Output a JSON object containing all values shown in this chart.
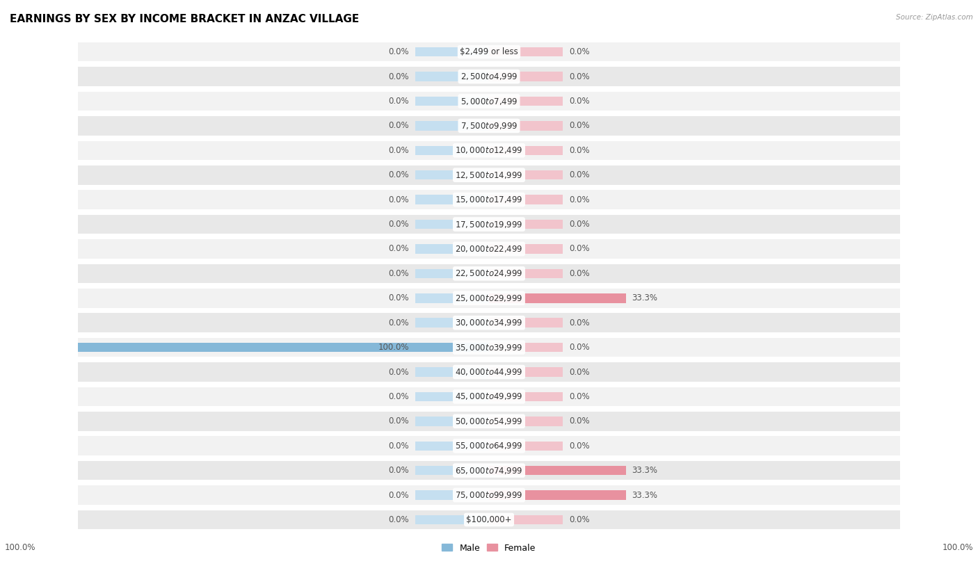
{
  "title": "EARNINGS BY SEX BY INCOME BRACKET IN ANZAC VILLAGE",
  "source": "Source: ZipAtlas.com",
  "categories": [
    "$2,499 or less",
    "$2,500 to $4,999",
    "$5,000 to $7,499",
    "$7,500 to $9,999",
    "$10,000 to $12,499",
    "$12,500 to $14,999",
    "$15,000 to $17,499",
    "$17,500 to $19,999",
    "$20,000 to $22,499",
    "$22,500 to $24,999",
    "$25,000 to $29,999",
    "$30,000 to $34,999",
    "$35,000 to $39,999",
    "$40,000 to $44,999",
    "$45,000 to $49,999",
    "$50,000 to $54,999",
    "$55,000 to $64,999",
    "$65,000 to $74,999",
    "$75,000 to $99,999",
    "$100,000+"
  ],
  "male_values": [
    0.0,
    0.0,
    0.0,
    0.0,
    0.0,
    0.0,
    0.0,
    0.0,
    0.0,
    0.0,
    0.0,
    0.0,
    100.0,
    0.0,
    0.0,
    0.0,
    0.0,
    0.0,
    0.0,
    0.0
  ],
  "female_values": [
    0.0,
    0.0,
    0.0,
    0.0,
    0.0,
    0.0,
    0.0,
    0.0,
    0.0,
    0.0,
    33.3,
    0.0,
    0.0,
    0.0,
    0.0,
    0.0,
    0.0,
    33.3,
    33.3,
    0.0
  ],
  "male_color": "#85b8d8",
  "female_color": "#e8919f",
  "male_bg_color": "#c5dff0",
  "female_bg_color": "#f2c4cc",
  "row_bg_light": "#f2f2f2",
  "row_bg_dark": "#e8e8e8",
  "text_color": "#555555",
  "cat_text_color": "#333333",
  "axis_max": 100.0,
  "bar_bg_extent": 18.0,
  "title_fontsize": 11,
  "cat_fontsize": 8.5,
  "val_fontsize": 8.5
}
